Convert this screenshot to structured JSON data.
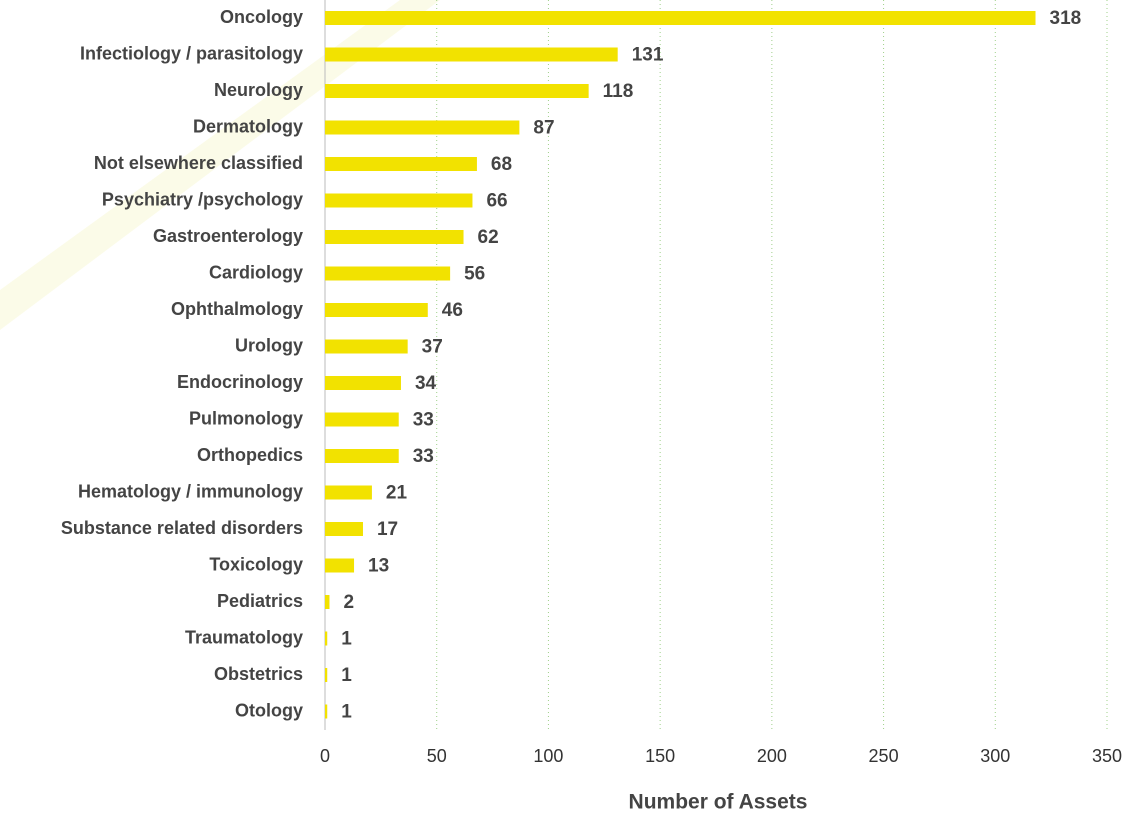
{
  "chart_data": {
    "type": "bar",
    "orientation": "horizontal",
    "categories": [
      "Oncology",
      "Infectiology / parasitology",
      "Neurology",
      "Dermatology",
      "Not elsewhere classified",
      "Psychiatry /psychology",
      "Gastroenterology",
      "Cardiology",
      "Ophthalmology",
      "Urology",
      "Endocrinology",
      "Pulmonology",
      "Orthopedics",
      "Hematology / immunology",
      "Substance related disorders",
      "Toxicology",
      "Pediatrics",
      "Traumatology",
      "Obstetrics",
      "Otology"
    ],
    "values": [
      318,
      131,
      118,
      87,
      68,
      66,
      62,
      56,
      46,
      37,
      34,
      33,
      33,
      21,
      17,
      13,
      2,
      1,
      1,
      1
    ],
    "color": "#f2e200",
    "xlim": [
      0,
      350
    ],
    "xticks": [
      0,
      50,
      100,
      150,
      200,
      250,
      300,
      350
    ],
    "xlabel": "Number of Assets",
    "grid": true
  }
}
